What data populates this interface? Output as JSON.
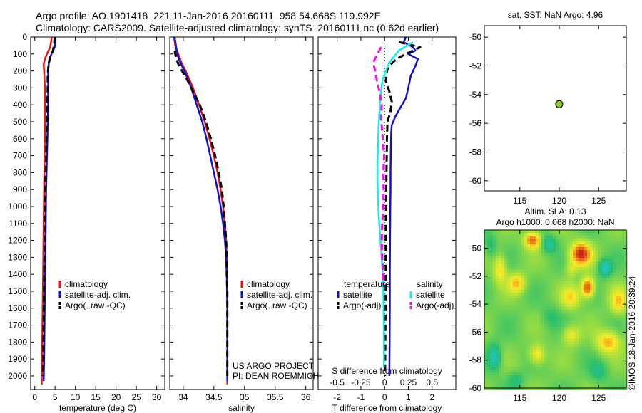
{
  "header": {
    "title_line1": "Argo profile: AO 1901418_221 11-Jan-2016 20160111_958 54.668S 119.992E",
    "title_line2": "Climatology: CARS2009. Satellite-adjusted climatology: synTS_20160111.nc (0.62d earlier)"
  },
  "credits": {
    "line1": "US ARGO PROJECT",
    "line2": "PI: DEAN ROEMMICH"
  },
  "footer": {
    "imos_stamp": "©IMOS 18-Jan-2016 20:39:24"
  },
  "colors": {
    "climatology": "#ee1111",
    "satellite": "#1111cc",
    "argo": "#000000",
    "sat_salinity": "#11eeee",
    "argo_salinity": "#ee11ee"
  },
  "chart_data": [
    {
      "id": "temperature",
      "type": "line",
      "xlabel": "temperature (deg C)",
      "ylabel": "",
      "xlim": [
        -1,
        32
      ],
      "ylim": [
        2080,
        0
      ],
      "xticks": [
        0,
        5,
        10,
        15,
        20,
        25,
        30
      ],
      "yticks": [
        0,
        100,
        200,
        300,
        400,
        500,
        600,
        700,
        800,
        900,
        1000,
        1100,
        1200,
        1300,
        1400,
        1500,
        1600,
        1700,
        1800,
        1900,
        2000
      ],
      "legend": {
        "placement": "lower-middle",
        "entries": [
          "climatology",
          "satellite-adj. clim.",
          "Argo(..raw -QC)"
        ]
      },
      "series": [
        {
          "name": "climatology",
          "color": "#ee1111",
          "style": "solid",
          "depth": [
            0,
            30,
            60,
            100,
            130,
            160,
            200,
            300,
            500,
            700,
            900,
            1100,
            1300,
            1500,
            1700,
            1900,
            2050
          ],
          "values": [
            4.2,
            4.0,
            3.8,
            3.0,
            2.5,
            2.2,
            2.3,
            2.5,
            2.5,
            2.4,
            2.3,
            2.2,
            2.1,
            2.0,
            1.9,
            1.8,
            1.7
          ]
        },
        {
          "name": "satellite-adj. clim.",
          "color": "#1111cc",
          "style": "solid",
          "depth": [
            0,
            30,
            60,
            100,
            140,
            200,
            300,
            400,
            500,
            600,
            700,
            800,
            900,
            1100,
            1300,
            1500,
            1700,
            1900,
            2030
          ],
          "values": [
            5.1,
            5.0,
            4.9,
            4.1,
            3.5,
            3.3,
            3.3,
            3.3,
            3.2,
            3.1,
            3.0,
            2.9,
            2.8,
            2.7,
            2.6,
            2.5,
            2.4,
            2.3,
            2.2
          ]
        },
        {
          "name": "Argo(..raw -QC)",
          "color": "#000000",
          "style": "dash",
          "depth": [
            0,
            40,
            80,
            120,
            160,
            220,
            300,
            400,
            500,
            700,
            900,
            1100,
            1300,
            1500,
            1700,
            1900,
            2000
          ],
          "values": [
            4.9,
            4.8,
            4.5,
            3.8,
            3.4,
            3.2,
            3.2,
            3.1,
            3.0,
            2.8,
            2.6,
            2.5,
            2.4,
            2.3,
            2.2,
            2.1,
            2.0
          ]
        }
      ]
    },
    {
      "id": "salinity",
      "type": "line",
      "xlabel": "salinity",
      "ylabel": "",
      "xlim": [
        33.78,
        36.12
      ],
      "ylim": [
        2080,
        0
      ],
      "xticks": [
        34,
        34.5,
        35,
        35.5,
        36
      ],
      "xticklabels": [
        "34",
        "34.5",
        "35",
        "35.5",
        "36"
      ],
      "legend": {
        "placement": "lower-right",
        "entries": [
          "climatology",
          "satellite-adj. clim.",
          "Argo(..raw -QC)"
        ]
      },
      "series": [
        {
          "name": "climatology",
          "color": "#ee1111",
          "style": "solid",
          "depth": [
            0,
            50,
            100,
            150,
            200,
            300,
            400,
            500,
            600,
            700,
            800,
            900,
            1000,
            1100,
            1200,
            1300,
            1400,
            1600,
            1800,
            2050
          ],
          "values": [
            33.85,
            33.87,
            33.92,
            33.97,
            34.04,
            34.16,
            34.26,
            34.35,
            34.43,
            34.5,
            34.56,
            34.61,
            34.65,
            34.68,
            34.7,
            34.71,
            34.72,
            34.72,
            34.72,
            34.72
          ]
        },
        {
          "name": "satellite-adj. clim.",
          "color": "#1111cc",
          "style": "solid",
          "depth": [
            0,
            50,
            100,
            150,
            200,
            300,
            400,
            500,
            600,
            700,
            800,
            900,
            1000,
            1100,
            1200,
            1300,
            1400,
            1600,
            1800,
            2030
          ],
          "values": [
            33.86,
            33.88,
            33.9,
            33.95,
            34.02,
            34.13,
            34.22,
            34.31,
            34.38,
            34.44,
            34.5,
            34.56,
            34.61,
            34.65,
            34.68,
            34.7,
            34.71,
            34.72,
            34.72,
            34.72
          ]
        },
        {
          "name": "Argo(..raw -QC)",
          "color": "#000000",
          "style": "dash",
          "depth": [
            80,
            120,
            160,
            200,
            250,
            300,
            400,
            500,
            600,
            700,
            800,
            900,
            1000,
            1100,
            1200,
            1300,
            1400,
            1500,
            1700,
            1900,
            2000
          ],
          "values": [
            33.86,
            33.88,
            33.92,
            33.98,
            34.06,
            34.13,
            34.27,
            34.37,
            34.45,
            34.52,
            34.58,
            34.63,
            34.66,
            34.68,
            34.7,
            34.71,
            34.71,
            34.72,
            34.72,
            34.72,
            34.72
          ]
        }
      ]
    },
    {
      "id": "difference",
      "type": "line",
      "xlabel": "T difference from climatology",
      "xlabel_top": "S difference from climatology",
      "ylabel": "",
      "xlim": [
        -2.8,
        3.0
      ],
      "ylim": [
        2080,
        0
      ],
      "xticks": [
        -2,
        -1,
        0,
        1,
        2
      ],
      "xticklabels": [
        "-2",
        "-1",
        "0",
        "1",
        "2"
      ],
      "sticks": [
        -2,
        -1,
        0,
        1,
        2
      ],
      "sticklabels": [
        "-0.5",
        "-0.25",
        "0",
        "0.25",
        "0.5"
      ],
      "legend": {
        "placement": "lower-middle",
        "groups": [
          {
            "heading": "temperature",
            "entries": [
              "satellite",
              "Argo(-adj)"
            ]
          },
          {
            "heading": "salinity",
            "entries": [
              "satellite",
              "Argo(-adj)"
            ]
          }
        ]
      },
      "series": [
        {
          "name": "temperature satellite",
          "color": "#1111cc",
          "style": "solid",
          "depth": [
            0,
            30,
            60,
            80,
            100,
            130,
            170,
            230,
            300,
            360,
            420,
            470,
            520,
            560,
            600,
            700,
            800,
            900,
            1000,
            1200,
            1400,
            1600,
            1800,
            2000
          ],
          "values": [
            0.9,
            0.8,
            1.2,
            1.3,
            1.0,
            1.4,
            1.3,
            1.1,
            1.0,
            0.9,
            0.65,
            0.45,
            0.3,
            0.28,
            0.27,
            0.26,
            0.25,
            0.25,
            0.24,
            0.23,
            0.22,
            0.22,
            0.21,
            0.2
          ]
        },
        {
          "name": "temperature Argo(-adj)",
          "color": "#000000",
          "style": "dash",
          "depth": [
            30,
            60,
            80,
            100,
            130,
            170,
            200,
            260,
            320,
            380,
            440,
            500,
            600,
            800,
            1000,
            1200,
            1400,
            1600,
            1800,
            2000
          ],
          "values": [
            0.6,
            1.5,
            1.2,
            0.9,
            0.5,
            0.2,
            0.1,
            0.05,
            0.2,
            0.3,
            0.25,
            0.12,
            0.1,
            0.08,
            0.06,
            0.05,
            0.05,
            0.04,
            0.03,
            0.02
          ]
        },
        {
          "name": "salinity satellite",
          "color": "#11eeee",
          "style": "solid",
          "depth": [
            30,
            80,
            150,
            250,
            350,
            450,
            550,
            650,
            750,
            850,
            950,
            1050,
            1150,
            1250,
            1350,
            1450,
            1600,
            1800,
            1950
          ],
          "values": [
            1.2,
            0.6,
            0.2,
            -0.08,
            -0.18,
            -0.22,
            -0.26,
            -0.28,
            -0.3,
            -0.3,
            -0.28,
            -0.25,
            -0.2,
            -0.15,
            -0.1,
            -0.06,
            -0.04,
            -0.03,
            -0.03
          ]
        },
        {
          "name": "salinity Argo(-adj)",
          "color": "#ee11ee",
          "style": "dash",
          "depth": [
            60,
            100,
            150,
            200,
            260,
            330,
            400,
            480,
            560,
            700,
            800,
            900,
            1000,
            1100,
            1200,
            1300,
            1400,
            1460
          ],
          "values": [
            -0.15,
            -0.3,
            -0.48,
            -0.4,
            -0.32,
            -0.2,
            -0.12,
            -0.15,
            -0.1,
            -0.02,
            -0.05,
            -0.04,
            -0.05,
            -0.1,
            -0.12,
            -0.1,
            -0.06,
            -0.04
          ]
        }
      ]
    },
    {
      "id": "sst-location",
      "type": "scatter",
      "title": "sat. SST: NaN Argo: 4.96",
      "xlim": [
        110.5,
        128.5
      ],
      "ylim": [
        -60.7,
        -49.2
      ],
      "xticks": [
        115,
        120,
        125
      ],
      "yticks": [
        -50,
        -52,
        -54,
        -56,
        -58,
        -60
      ],
      "points": [
        {
          "x": 119.992,
          "y": -54.668,
          "color": "#88cc22"
        }
      ]
    },
    {
      "id": "altimetry",
      "type": "heatmap",
      "title_line1": "Altim. SLA: 0.13",
      "title_line2": "Argo h1000: 0.068 h2000: NaN",
      "xlim": [
        110.5,
        128.5
      ],
      "ylim": [
        -60.0,
        -48.7
      ],
      "xticks": [
        115,
        120,
        125
      ],
      "yticks": [
        -50,
        -52,
        -54,
        -56,
        -58,
        -60
      ],
      "anomalies": [
        {
          "x": 116.6,
          "y": -49.4,
          "amp": 0.9,
          "sx": 1.0,
          "sy": 0.6
        },
        {
          "x": 122.7,
          "y": -50.4,
          "amp": 1.1,
          "sx": 1.3,
          "sy": 0.8
        },
        {
          "x": 123.6,
          "y": -52.8,
          "amp": 1.0,
          "sx": 0.8,
          "sy": 0.7
        },
        {
          "x": 121.5,
          "y": -53.5,
          "amp": 0.5,
          "sx": 1.2,
          "sy": 0.8
        },
        {
          "x": 114.6,
          "y": -52.5,
          "amp": 0.6,
          "sx": 1.1,
          "sy": 0.7
        },
        {
          "x": 112.5,
          "y": -51.5,
          "amp": 0.55,
          "sx": 0.8,
          "sy": 1.0
        },
        {
          "x": 127.5,
          "y": -53.8,
          "amp": 0.55,
          "sx": 1.0,
          "sy": 0.9
        },
        {
          "x": 126.2,
          "y": -56.7,
          "amp": 0.65,
          "sx": 1.5,
          "sy": 0.8
        },
        {
          "x": 117.2,
          "y": -57.6,
          "amp": 0.55,
          "sx": 1.0,
          "sy": 0.7
        },
        {
          "x": 121.5,
          "y": -56.2,
          "amp": 0.45,
          "sx": 1.1,
          "sy": 0.7
        },
        {
          "x": 111.8,
          "y": -57.8,
          "amp": -0.55,
          "sx": 0.8,
          "sy": 0.9
        },
        {
          "x": 118.7,
          "y": -49.7,
          "amp": -0.45,
          "sx": 0.9,
          "sy": 0.6
        },
        {
          "x": 125.8,
          "y": -51.4,
          "amp": -0.6,
          "sx": 0.8,
          "sy": 0.6
        },
        {
          "x": 121.5,
          "y": -51.5,
          "amp": 0.3,
          "sx": 0.7,
          "sy": 0.6
        },
        {
          "x": 111.3,
          "y": -49.8,
          "amp": -0.25,
          "sx": 0.7,
          "sy": 0.8
        },
        {
          "x": 125.0,
          "y": -58.8,
          "amp": -0.3,
          "sx": 1.1,
          "sy": 0.7
        },
        {
          "x": 114.5,
          "y": -59.4,
          "amp": -0.25,
          "sx": 1.0,
          "sy": 0.6
        },
        {
          "x": 118.9,
          "y": -54.9,
          "amp": -0.2,
          "sx": 1.2,
          "sy": 0.8
        }
      ]
    }
  ]
}
